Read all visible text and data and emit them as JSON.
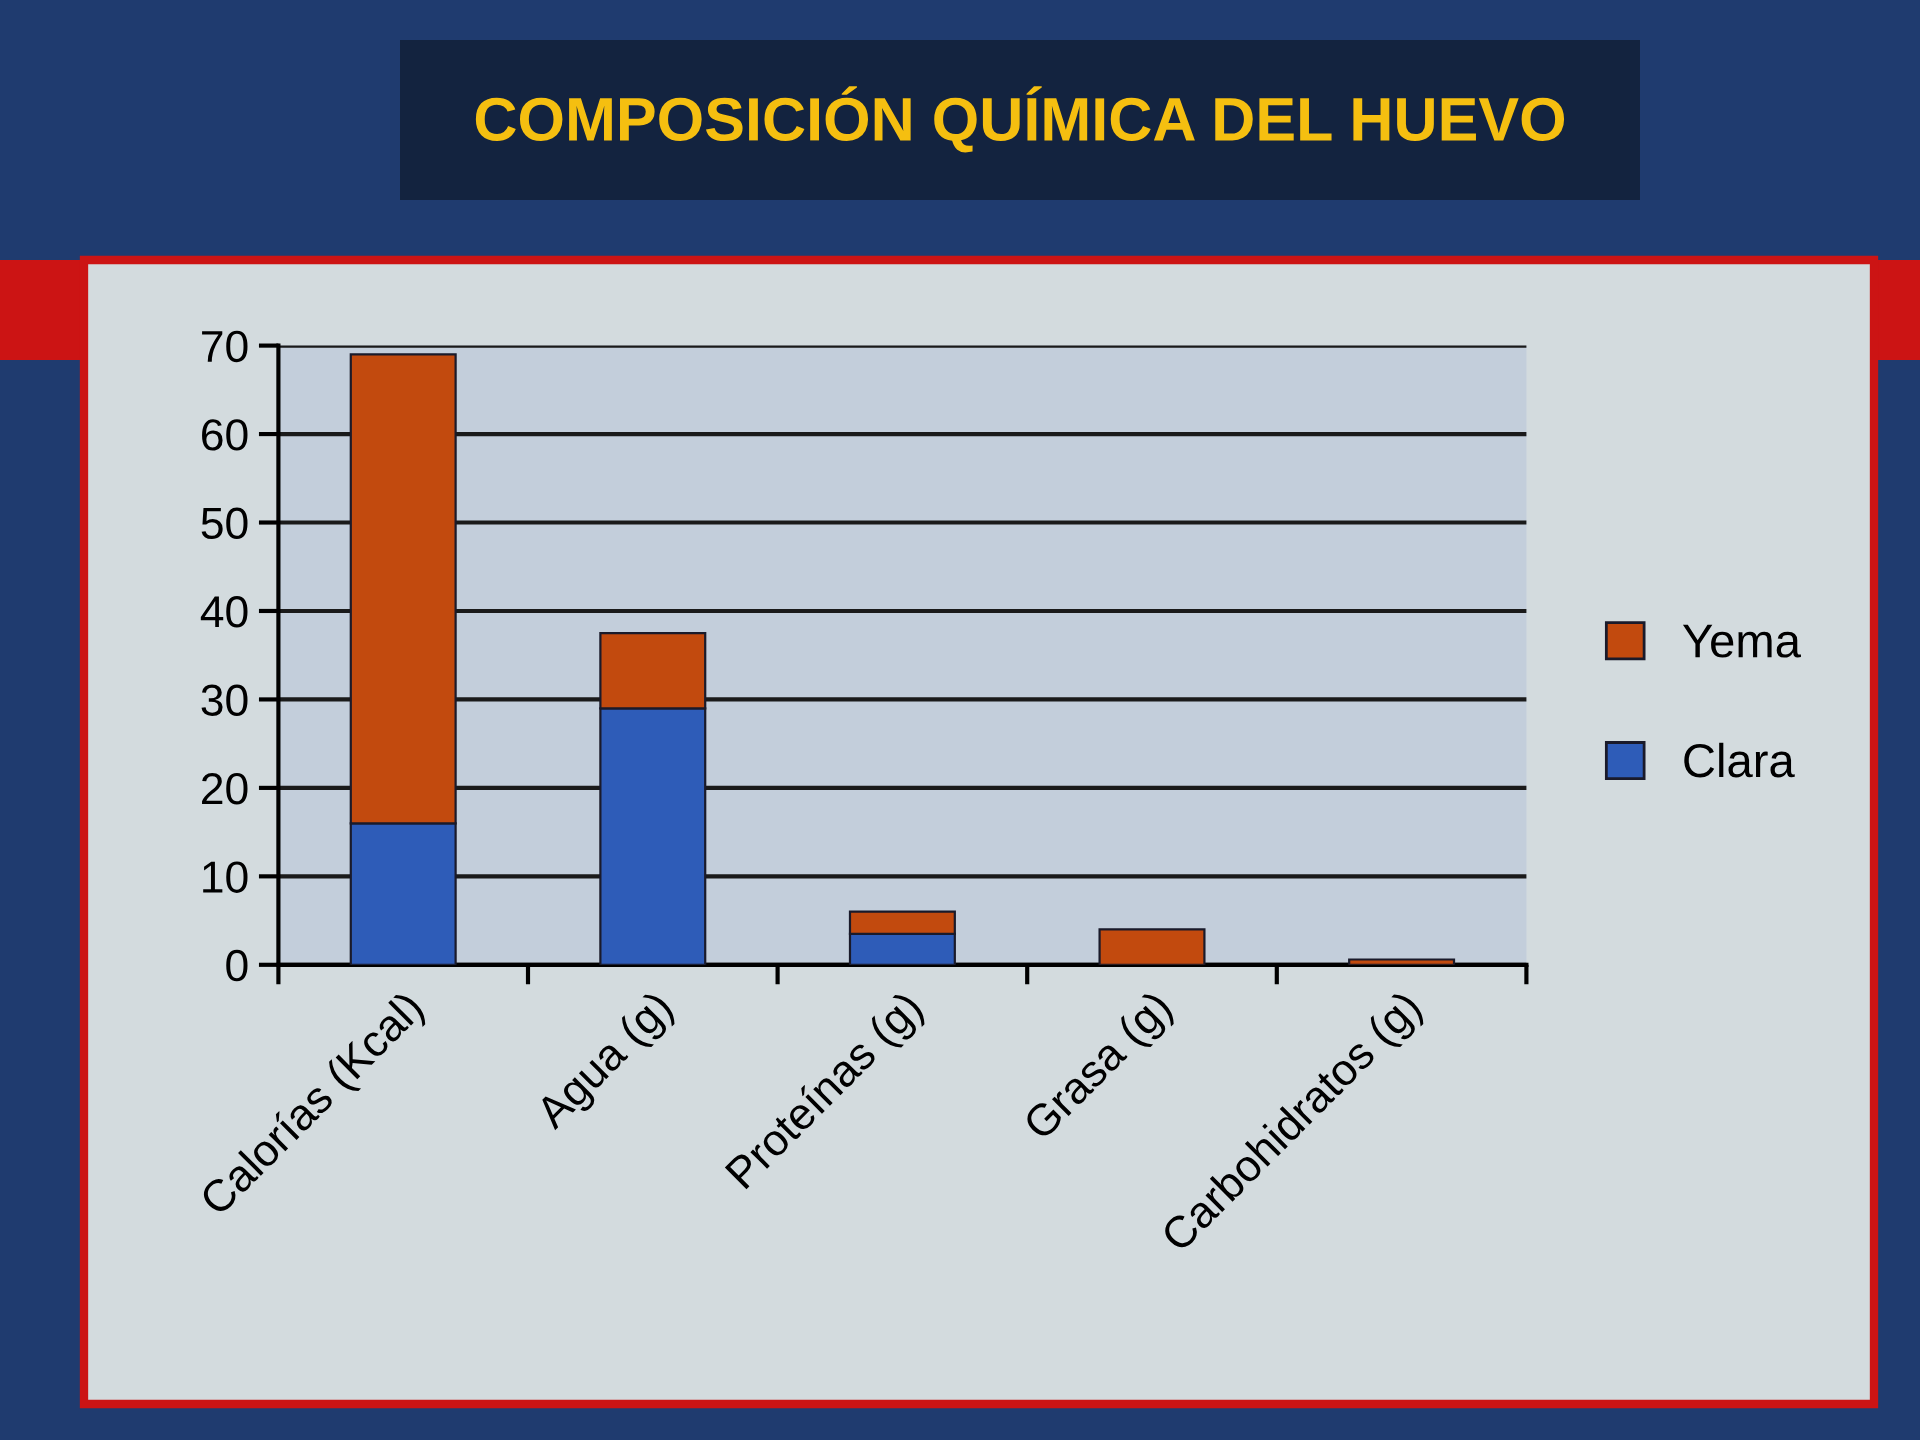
{
  "chart_data": {
    "type": "bar",
    "title": "COMPOSICIÓN QUÍMICA DEL HUEVO",
    "categories": [
      "Calorías (Kcal)",
      "Agua (g)",
      "Proteínas (g)",
      "Grasa (g)",
      "Carbohidratos (g)"
    ],
    "series": [
      {
        "name": "Clara",
        "color": "#2e5cb8",
        "values": [
          16,
          29,
          3.5,
          0,
          0
        ]
      },
      {
        "name": "Yema",
        "color": "#c24a0e",
        "values": [
          53,
          8.5,
          2.5,
          4,
          0.6
        ]
      }
    ],
    "stacked": true,
    "ylim": [
      0,
      70
    ],
    "yticks": [
      0,
      10,
      20,
      30,
      40,
      50,
      60,
      70
    ],
    "grid": "y",
    "legend": "right"
  }
}
